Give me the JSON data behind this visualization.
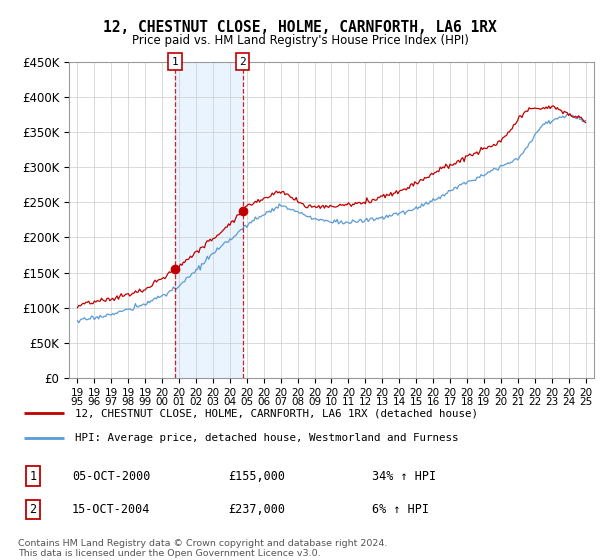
{
  "title": "12, CHESTNUT CLOSE, HOLME, CARNFORTH, LA6 1RX",
  "subtitle": "Price paid vs. HM Land Registry's House Price Index (HPI)",
  "legend_line1": "12, CHESTNUT CLOSE, HOLME, CARNFORTH, LA6 1RX (detached house)",
  "legend_line2": "HPI: Average price, detached house, Westmorland and Furness",
  "footnote1": "Contains HM Land Registry data © Crown copyright and database right 2024.",
  "footnote2": "This data is licensed under the Open Government Licence v3.0.",
  "sale1_num": "1",
  "sale1_date": "05-OCT-2000",
  "sale1_price": "£155,000",
  "sale1_hpi": "34% ↑ HPI",
  "sale2_num": "2",
  "sale2_date": "15-OCT-2004",
  "sale2_price": "£237,000",
  "sale2_hpi": "6% ↑ HPI",
  "hpi_color": "#5b9bd5",
  "price_color": "#c00000",
  "marker_color": "#c00000",
  "sale1_x": 2000.75,
  "sale1_y": 155000,
  "sale2_x": 2004.75,
  "sale2_y": 237000,
  "vline1_x": 2000.75,
  "vline2_x": 2004.75,
  "ylim_min": 0,
  "ylim_max": 450000,
  "xlim_min": 1994.5,
  "xlim_max": 2025.5,
  "yticks": [
    0,
    50000,
    100000,
    150000,
    200000,
    250000,
    300000,
    350000,
    400000,
    450000
  ],
  "ytick_labels": [
    "£0",
    "£50K",
    "£100K",
    "£150K",
    "£200K",
    "£250K",
    "£300K",
    "£350K",
    "£400K",
    "£450K"
  ],
  "xticks": [
    1995,
    1996,
    1997,
    1998,
    1999,
    2000,
    2001,
    2002,
    2003,
    2004,
    2005,
    2006,
    2007,
    2008,
    2009,
    2010,
    2011,
    2012,
    2013,
    2014,
    2015,
    2016,
    2017,
    2018,
    2019,
    2020,
    2021,
    2022,
    2023,
    2024,
    2025
  ],
  "band_color": "#ddeeff",
  "band_alpha": 0.6
}
